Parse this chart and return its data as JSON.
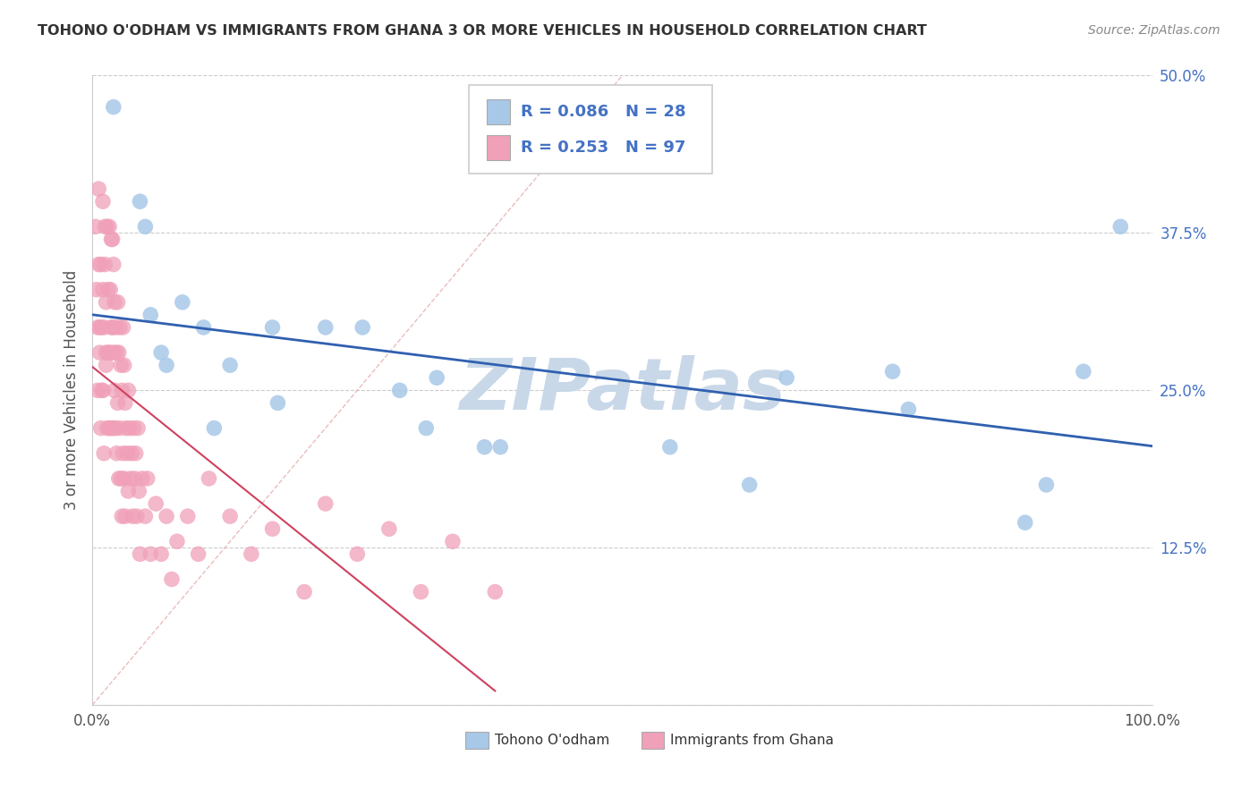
{
  "title": "TOHONO O'ODHAM VS IMMIGRANTS FROM GHANA 3 OR MORE VEHICLES IN HOUSEHOLD CORRELATION CHART",
  "source": "Source: ZipAtlas.com",
  "ylabel": "3 or more Vehicles in Household",
  "series1_name": "Tohono O'odham",
  "series2_name": "Immigrants from Ghana",
  "series1_R": 0.086,
  "series1_N": 28,
  "series2_R": 0.253,
  "series2_N": 97,
  "series1_color": "#a8c8e8",
  "series2_color": "#f0a0b8",
  "trend1_color": "#3060b0",
  "trend2_color": "#d04060",
  "xlim": [
    0.0,
    1.0
  ],
  "ylim": [
    0.0,
    0.5
  ],
  "xticks": [
    0.0,
    0.25,
    0.5,
    0.75,
    1.0
  ],
  "xticklabels": [
    "0.0%",
    "",
    "",
    "",
    "100.0%"
  ],
  "yticks": [
    0.0,
    0.125,
    0.25,
    0.375,
    0.5
  ],
  "yticklabels": [
    "",
    "12.5%",
    "25.0%",
    "37.5%",
    "50.0%"
  ],
  "background_color": "#ffffff",
  "grid_color": "#cccccc",
  "watermark_text": "ZIPatlas",
  "watermark_color": "#c8d8e8",
  "series1_x": [
    0.02,
    0.045,
    0.05,
    0.055,
    0.065,
    0.07,
    0.085,
    0.105,
    0.115,
    0.13,
    0.17,
    0.175,
    0.22,
    0.255,
    0.29,
    0.315,
    0.325,
    0.37,
    0.385,
    0.545,
    0.62,
    0.655,
    0.755,
    0.77,
    0.88,
    0.9,
    0.935,
    0.97
  ],
  "series1_y": [
    0.475,
    0.4,
    0.38,
    0.31,
    0.28,
    0.27,
    0.32,
    0.3,
    0.22,
    0.27,
    0.3,
    0.24,
    0.3,
    0.3,
    0.25,
    0.22,
    0.26,
    0.205,
    0.205,
    0.205,
    0.175,
    0.26,
    0.265,
    0.235,
    0.145,
    0.175,
    0.265,
    0.38
  ],
  "series2_x": [
    0.003,
    0.004,
    0.005,
    0.005,
    0.006,
    0.006,
    0.007,
    0.007,
    0.008,
    0.008,
    0.009,
    0.009,
    0.01,
    0.01,
    0.01,
    0.011,
    0.011,
    0.012,
    0.012,
    0.013,
    0.013,
    0.013,
    0.014,
    0.014,
    0.015,
    0.015,
    0.016,
    0.016,
    0.017,
    0.017,
    0.018,
    0.018,
    0.018,
    0.019,
    0.019,
    0.02,
    0.02,
    0.02,
    0.021,
    0.021,
    0.022,
    0.022,
    0.023,
    0.023,
    0.024,
    0.024,
    0.025,
    0.025,
    0.026,
    0.026,
    0.027,
    0.027,
    0.028,
    0.028,
    0.029,
    0.029,
    0.03,
    0.03,
    0.031,
    0.031,
    0.032,
    0.033,
    0.034,
    0.034,
    0.035,
    0.036,
    0.037,
    0.038,
    0.039,
    0.04,
    0.041,
    0.042,
    0.043,
    0.044,
    0.045,
    0.047,
    0.05,
    0.052,
    0.055,
    0.06,
    0.065,
    0.07,
    0.075,
    0.08,
    0.09,
    0.1,
    0.11,
    0.13,
    0.15,
    0.17,
    0.2,
    0.22,
    0.25,
    0.28,
    0.31,
    0.34,
    0.38
  ],
  "series2_y": [
    0.38,
    0.33,
    0.3,
    0.25,
    0.41,
    0.35,
    0.28,
    0.3,
    0.22,
    0.35,
    0.3,
    0.25,
    0.4,
    0.33,
    0.25,
    0.3,
    0.2,
    0.38,
    0.35,
    0.28,
    0.32,
    0.27,
    0.22,
    0.38,
    0.33,
    0.28,
    0.22,
    0.38,
    0.33,
    0.28,
    0.37,
    0.3,
    0.22,
    0.37,
    0.3,
    0.35,
    0.28,
    0.22,
    0.32,
    0.25,
    0.3,
    0.22,
    0.28,
    0.2,
    0.32,
    0.24,
    0.28,
    0.18,
    0.3,
    0.22,
    0.27,
    0.18,
    0.25,
    0.15,
    0.3,
    0.2,
    0.27,
    0.18,
    0.24,
    0.15,
    0.22,
    0.2,
    0.25,
    0.17,
    0.22,
    0.18,
    0.2,
    0.15,
    0.22,
    0.18,
    0.2,
    0.15,
    0.22,
    0.17,
    0.12,
    0.18,
    0.15,
    0.18,
    0.12,
    0.16,
    0.12,
    0.15,
    0.1,
    0.13,
    0.15,
    0.12,
    0.18,
    0.15,
    0.12,
    0.14,
    0.09,
    0.16,
    0.12,
    0.14,
    0.09,
    0.13,
    0.09
  ]
}
